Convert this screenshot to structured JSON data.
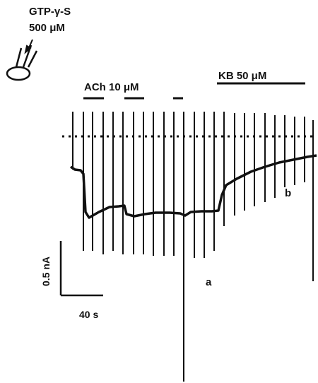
{
  "drug": {
    "name": "GTP-γ-S",
    "concentration": "500 μM"
  },
  "applications": {
    "ach_label": "ACh 10 μM",
    "kb_label": "KB 50 μM"
  },
  "markers": {
    "a": "a",
    "b": "b"
  },
  "scale_bar": {
    "current": "0.5 nA",
    "time": "40 s"
  }
}
